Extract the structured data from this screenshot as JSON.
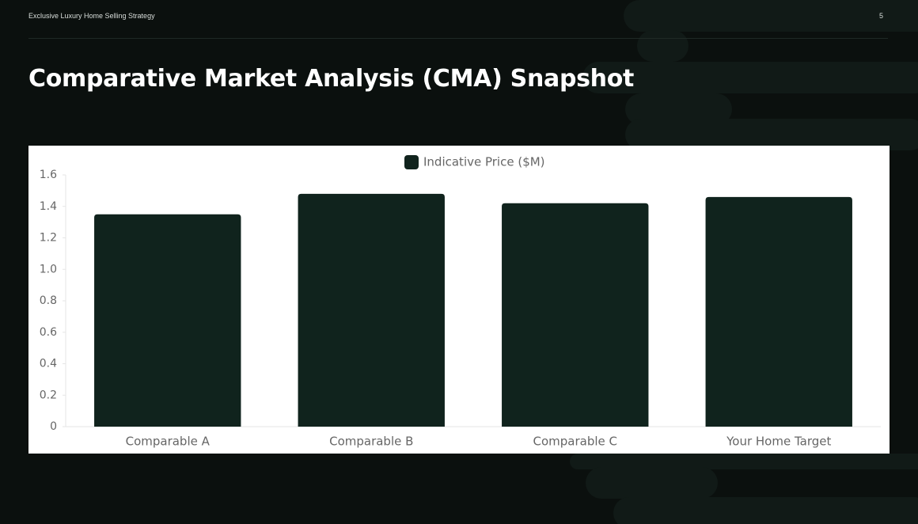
{
  "header": {
    "text": "Exclusive Luxury Home Selling Strategy",
    "page_number": "5"
  },
  "title": "Comparative Market Analysis (CMA) Snapshot",
  "chart_data": {
    "type": "bar",
    "categories": [
      "Comparable A",
      "Comparable B",
      "Comparable C",
      "Your Home Target"
    ],
    "series": [
      {
        "name": "Indicative Price ($M)",
        "color": "#10231d",
        "values": [
          1.35,
          1.48,
          1.42,
          1.46
        ]
      }
    ],
    "ylim": [
      0,
      1.6
    ],
    "yticks": [
      0,
      0.2,
      0.4,
      0.6,
      0.8,
      {
        "value": 1,
        "label": "1.0"
      },
      1.2,
      1.4,
      1.6
    ],
    "grid": false,
    "legend": "top"
  }
}
